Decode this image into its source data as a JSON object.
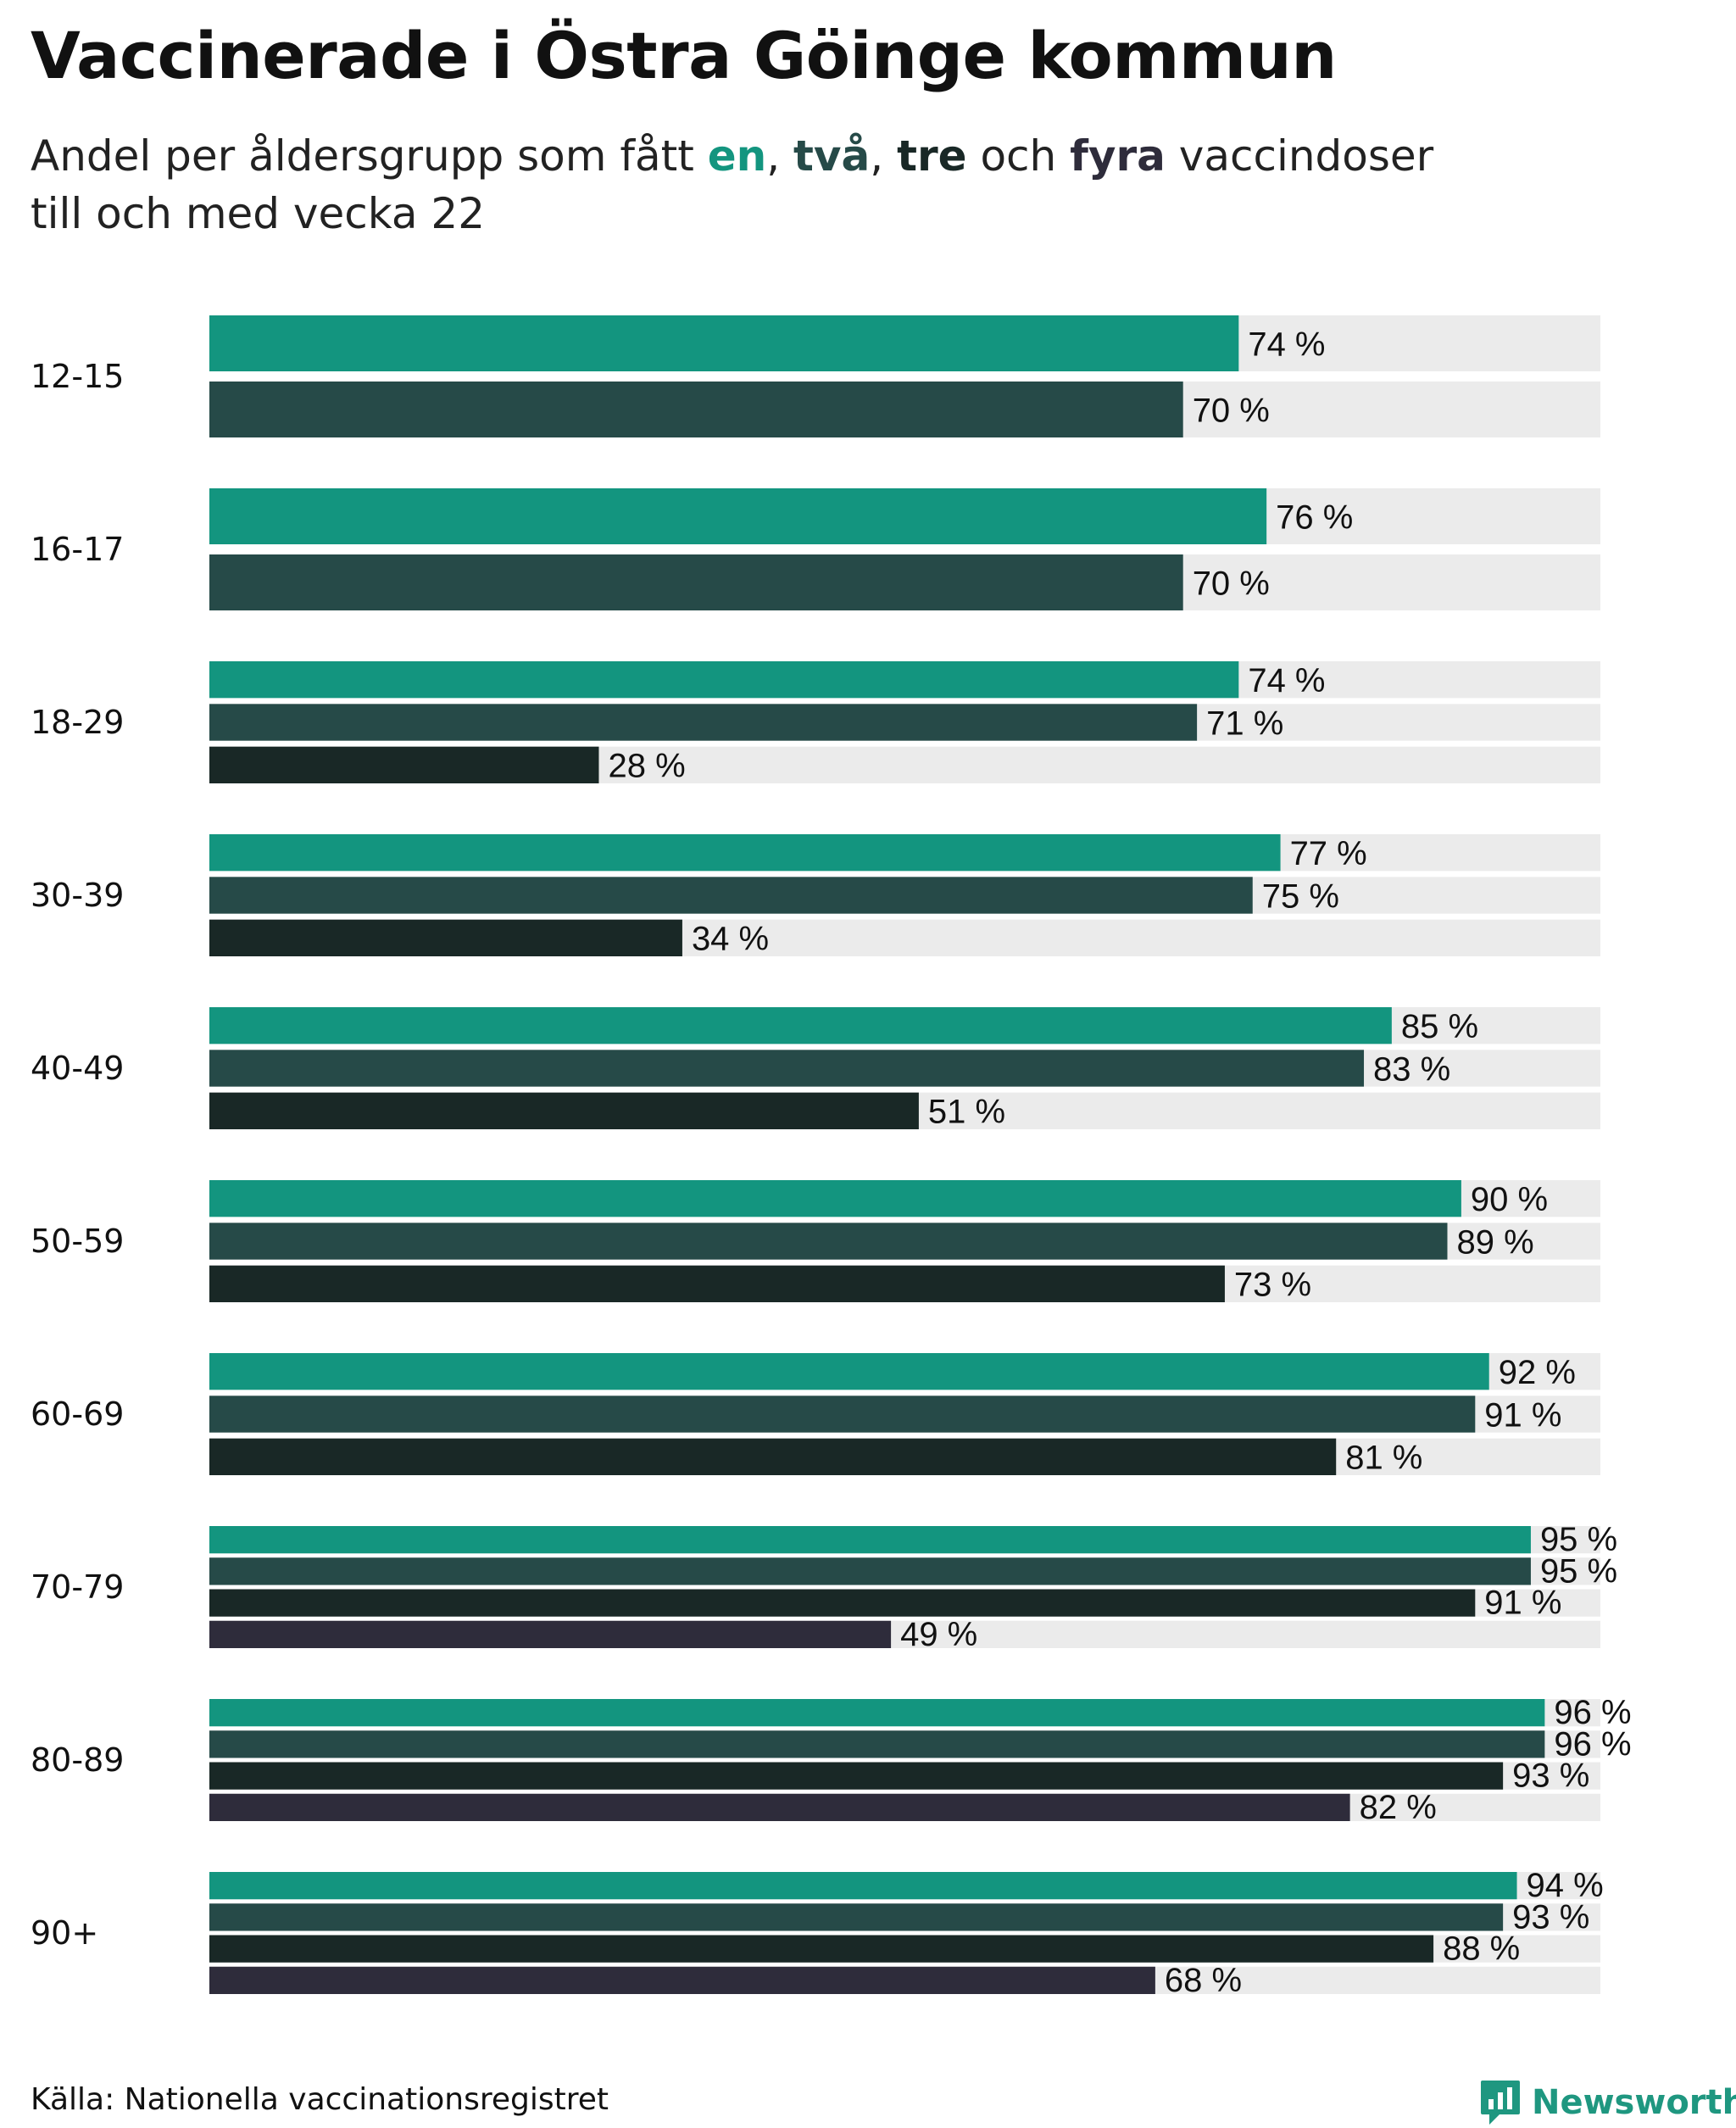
{
  "title": "Vaccinerade i Östra Göinge kommun",
  "subtitle": {
    "prefix": "Andel per åldersgrupp som fått ",
    "dose1": "en",
    "sep1": ", ",
    "dose2": "två",
    "sep2": ", ",
    "dose3": "tre",
    "and": " och ",
    "dose4": "fyra",
    "suffix": " vaccindoser",
    "line2": "till och med vecka 22"
  },
  "source": "Källa: Nationella vaccinationsregistret",
  "brand": "Newsworthy",
  "colors": {
    "dose1": "#13957f",
    "dose2": "#264a48",
    "dose3": "#192826",
    "dose4": "#2e2c3b",
    "track": "#ebebeb",
    "brand": "#1f9780"
  },
  "chart_data": {
    "type": "bar",
    "orientation": "horizontal",
    "xlim": [
      0,
      100
    ],
    "unit": "%",
    "categories": [
      "12-15",
      "16-17",
      "18-29",
      "30-39",
      "40-49",
      "50-59",
      "60-69",
      "70-79",
      "80-89",
      "90+"
    ],
    "series": [
      {
        "name": "en",
        "values": [
          74,
          76,
          74,
          77,
          85,
          90,
          92,
          95,
          96,
          94
        ]
      },
      {
        "name": "två",
        "values": [
          70,
          70,
          71,
          75,
          83,
          89,
          91,
          95,
          96,
          93
        ]
      },
      {
        "name": "tre",
        "values": [
          null,
          null,
          28,
          34,
          51,
          73,
          81,
          91,
          93,
          88
        ]
      },
      {
        "name": "fyra",
        "values": [
          null,
          null,
          null,
          null,
          null,
          null,
          null,
          49,
          82,
          68
        ]
      }
    ],
    "value_labels": "inside-right",
    "grid": false,
    "legend": "subtitle"
  }
}
